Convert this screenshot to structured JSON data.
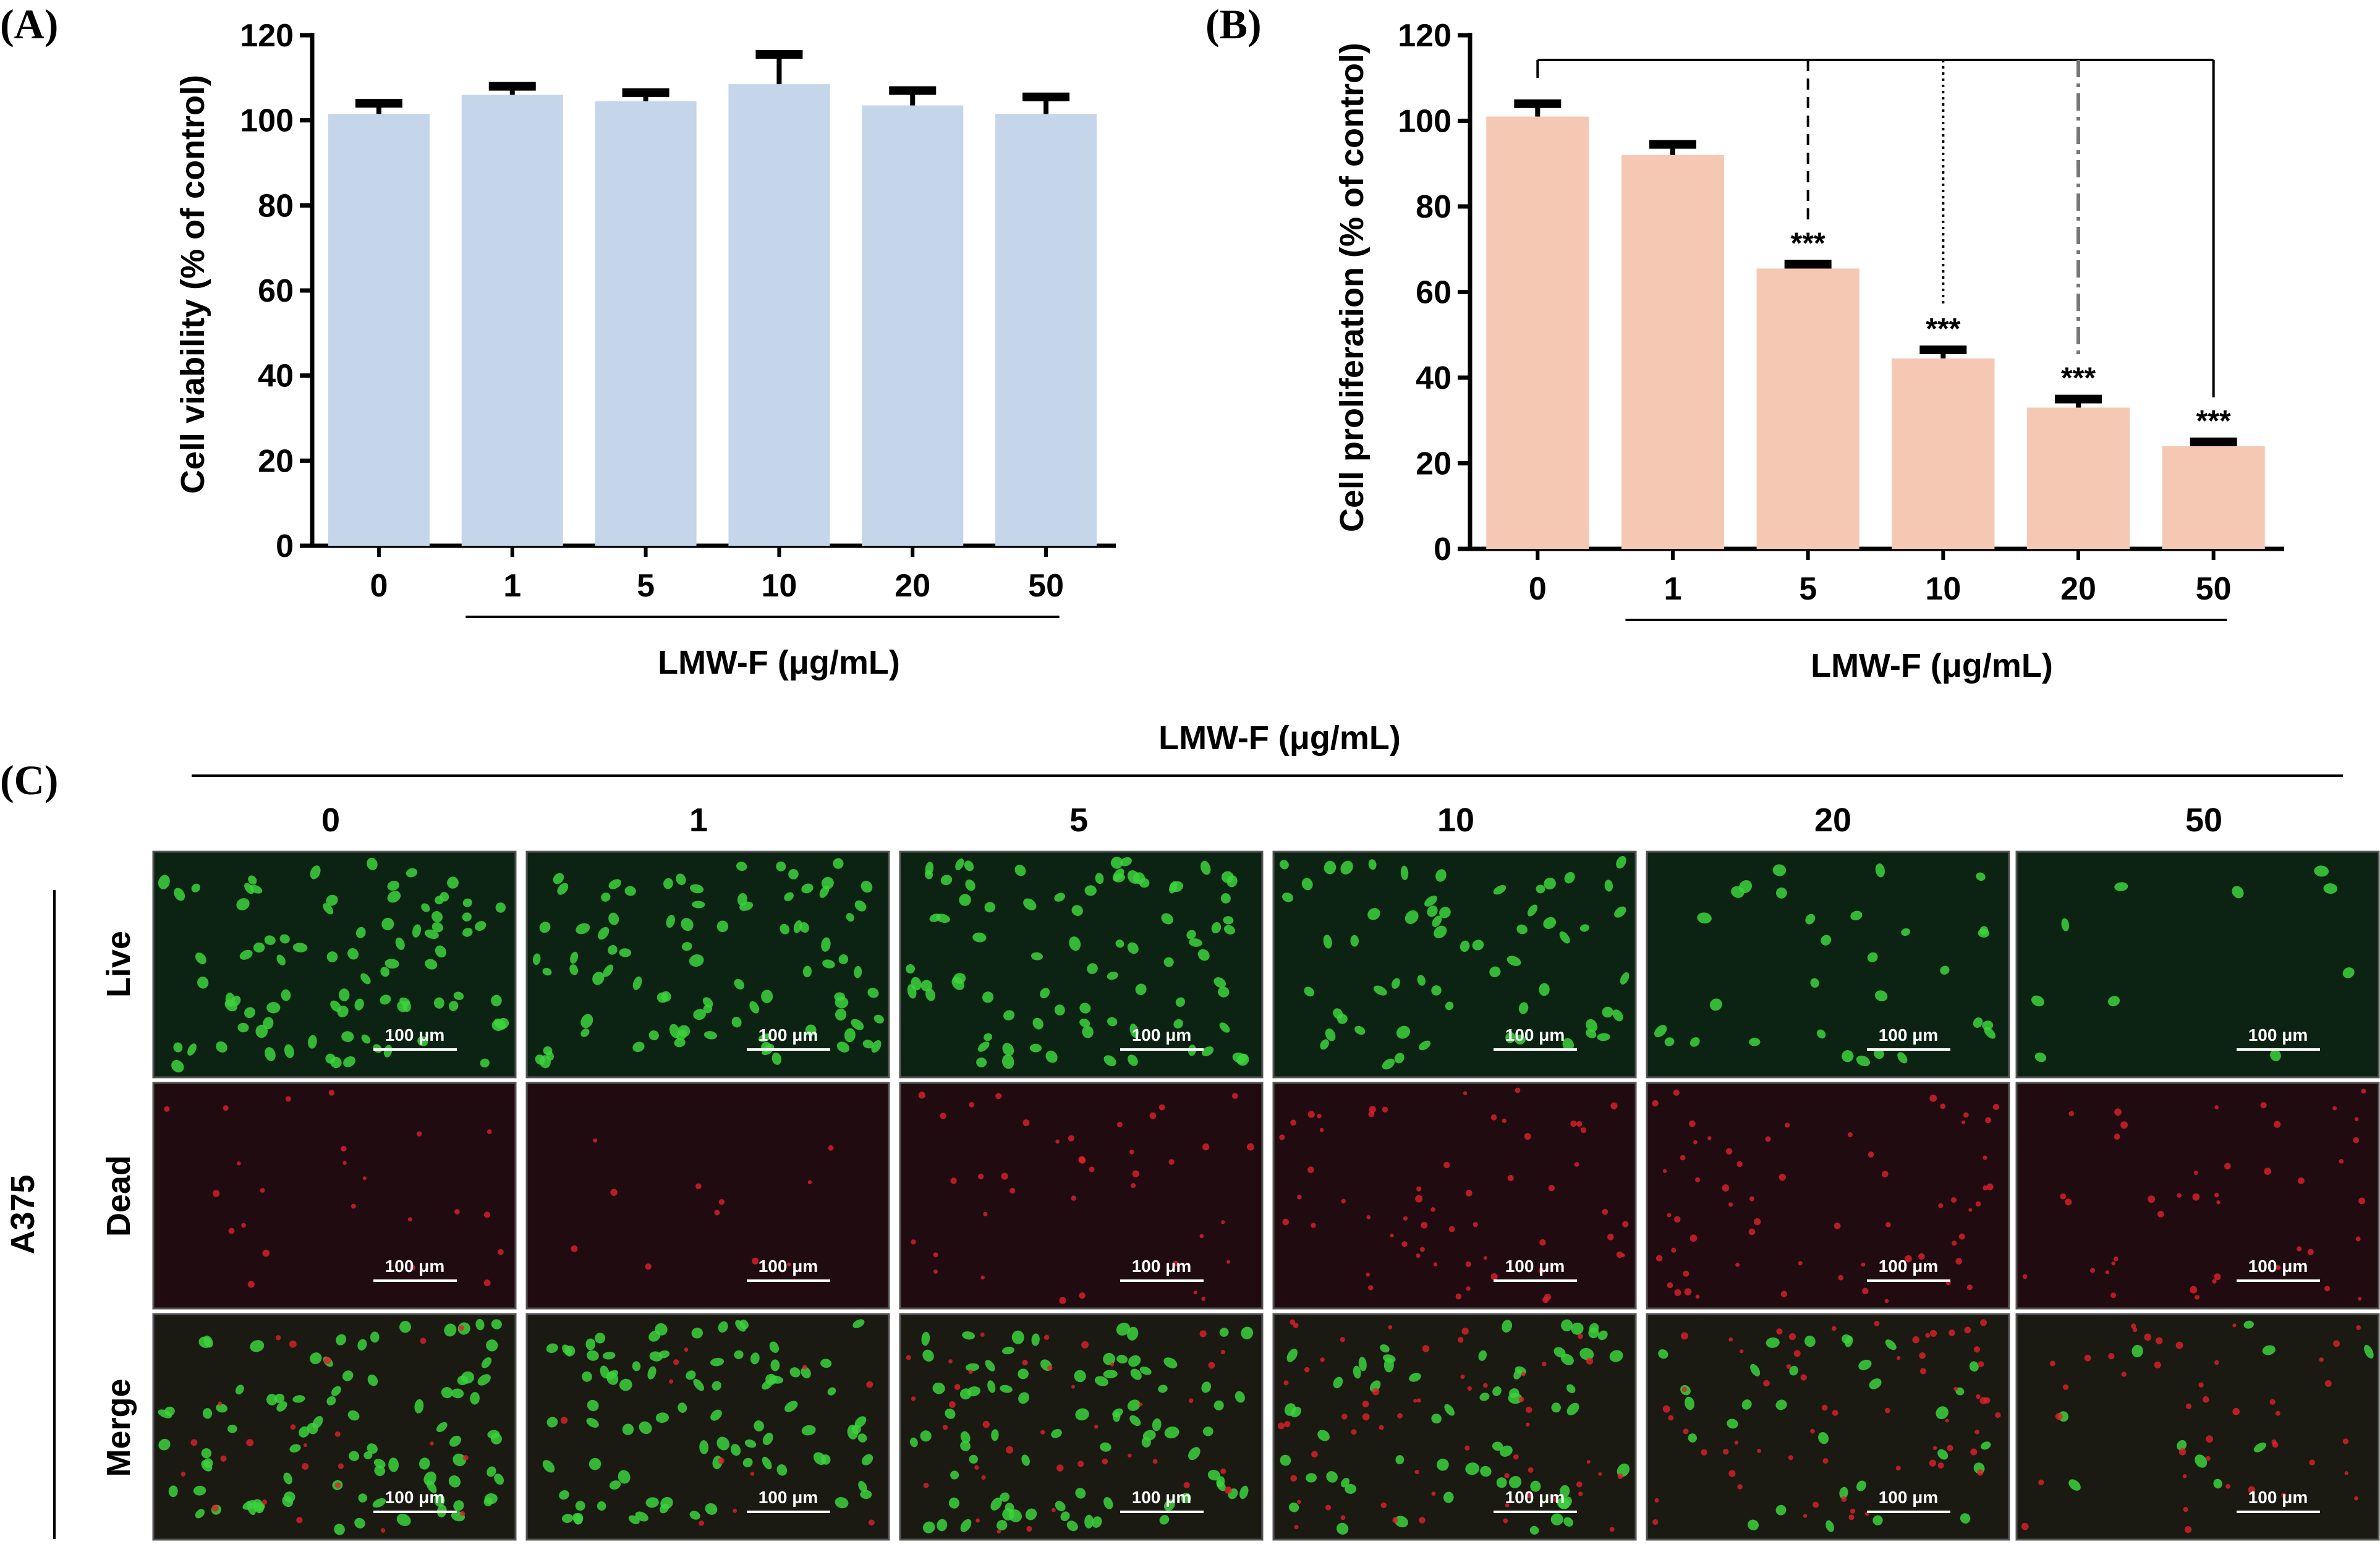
{
  "panels": {
    "a": "(A)",
    "b": "(B)",
    "c": "(C)"
  },
  "chart_data": [
    {
      "type": "bar",
      "panel": "A",
      "title": "",
      "ylabel": "Cell viability (% of control)",
      "xlabel": "LMW-F (μg/mL)",
      "categories": [
        "0",
        "1",
        "5",
        "10",
        "20",
        "50"
      ],
      "values": [
        101.5,
        106,
        104.5,
        108.5,
        103.5,
        101.5
      ],
      "errors": [
        2.5,
        2,
        2,
        7,
        3.5,
        4
      ],
      "ylim": [
        0,
        120
      ],
      "yticks": [
        0,
        20,
        40,
        60,
        80,
        100,
        120
      ],
      "bar_color": "#c5d5ea",
      "grid": false,
      "annotations": []
    },
    {
      "type": "bar",
      "panel": "B",
      "title": "",
      "ylabel": "Cell proliferation (% of control)",
      "xlabel": "LMW-F (μg/mL)",
      "categories": [
        "0",
        "1",
        "5",
        "10",
        "20",
        "50"
      ],
      "values": [
        101,
        92,
        65.5,
        44.5,
        33,
        24
      ],
      "errors": [
        3,
        2.5,
        1,
        2,
        2,
        1
      ],
      "ylim": [
        0,
        120
      ],
      "yticks": [
        0,
        20,
        40,
        60,
        80,
        100,
        120
      ],
      "bar_color": "#f5c8b4",
      "grid": false,
      "annotations": [
        "",
        "",
        "***",
        "***",
        "***",
        "***"
      ]
    }
  ],
  "image_grid": {
    "header": "LMW-F (μg/mL)",
    "columns": [
      "0",
      "1",
      "5",
      "10",
      "20",
      "50"
    ],
    "rows": [
      "Live",
      "Dead",
      "Merge"
    ],
    "cell_line": "A375",
    "scale_bar": "100 μm",
    "live_cell_density": [
      1.0,
      1.0,
      0.95,
      0.7,
      0.35,
      0.12
    ],
    "dead_cell_density": [
      0.3,
      0.15,
      0.5,
      0.75,
      0.8,
      0.55
    ],
    "colors": {
      "live": "#3cd23c",
      "dead": "#e0202a"
    }
  }
}
